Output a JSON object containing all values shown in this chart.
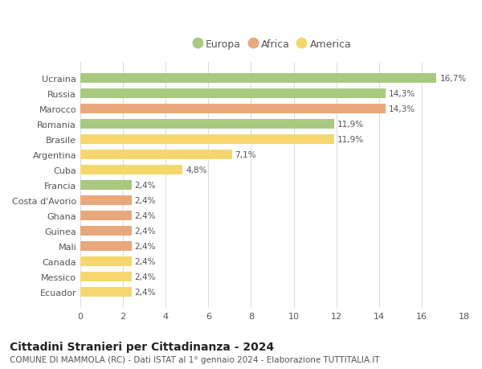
{
  "categories": [
    "Ecuador",
    "Messico",
    "Canada",
    "Mali",
    "Guinea",
    "Ghana",
    "Costa d'Avorio",
    "Francia",
    "Cuba",
    "Argentina",
    "Brasile",
    "Romania",
    "Marocco",
    "Russia",
    "Ucraina"
  ],
  "values": [
    2.4,
    2.4,
    2.4,
    2.4,
    2.4,
    2.4,
    2.4,
    2.4,
    4.8,
    7.1,
    11.9,
    11.9,
    14.3,
    14.3,
    16.7
  ],
  "colors": [
    "#f5d76e",
    "#f5d76e",
    "#f5d76e",
    "#e8a87c",
    "#e8a87c",
    "#e8a87c",
    "#e8a87c",
    "#a8c97f",
    "#f5d76e",
    "#f5d76e",
    "#f5d76e",
    "#a8c97f",
    "#e8a87c",
    "#a8c97f",
    "#a8c97f"
  ],
  "labels": [
    "2,4%",
    "2,4%",
    "2,4%",
    "2,4%",
    "2,4%",
    "2,4%",
    "2,4%",
    "2,4%",
    "4,8%",
    "7,1%",
    "11,9%",
    "11,9%",
    "14,3%",
    "14,3%",
    "16,7%"
  ],
  "legend": [
    {
      "label": "Europa",
      "color": "#a8c97f"
    },
    {
      "label": "Africa",
      "color": "#e8a87c"
    },
    {
      "label": "America",
      "color": "#f5d76e"
    }
  ],
  "xlim": [
    0,
    18
  ],
  "xticks": [
    0,
    2,
    4,
    6,
    8,
    10,
    12,
    14,
    16,
    18
  ],
  "title": "Cittadini Stranieri per Cittadinanza - 2024",
  "subtitle": "COMUNE DI MAMMOLA (RC) - Dati ISTAT al 1° gennaio 2024 - Elaborazione TUTTITALIA.IT",
  "background_color": "#ffffff",
  "grid_color": "#dddddd",
  "bar_height": 0.65,
  "label_fontsize": 7.5,
  "title_fontsize": 10,
  "subtitle_fontsize": 7.5,
  "ytick_fontsize": 8,
  "xtick_fontsize": 8,
  "legend_fontsize": 9
}
